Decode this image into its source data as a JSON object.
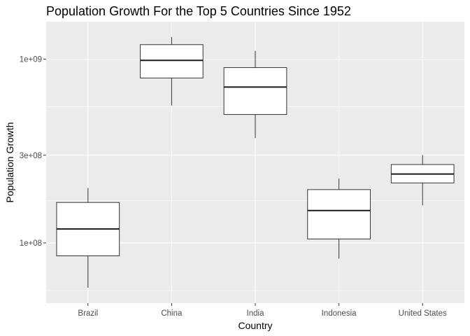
{
  "chart_data": {
    "type": "boxplot",
    "title": "Population Growth For the Top 5 Countries Since 1952",
    "xlabel": "Country",
    "ylabel": "Population Growth",
    "y_scale": "log10",
    "ylim": [
      47000000,
      1600000000
    ],
    "y_ticks": [
      {
        "value": 100000000,
        "label": "1e+08"
      },
      {
        "value": 300000000,
        "label": "3e+08"
      },
      {
        "value": 1000000000,
        "label": "1e+09"
      }
    ],
    "y_minor_ticks": [
      55000000,
      170000000,
      550000000
    ],
    "grid": true,
    "categories": [
      "Brazil",
      "China",
      "India",
      "Indonesia",
      "United States"
    ],
    "boxes": [
      {
        "category": "Brazil",
        "min": 57000000,
        "q1": 85000000,
        "median": 119000000,
        "q3": 166000000,
        "max": 199000000
      },
      {
        "category": "China",
        "min": 560000000,
        "q1": 790000000,
        "median": 985000000,
        "q3": 1200000000,
        "max": 1320000000
      },
      {
        "category": "India",
        "min": 372000000,
        "q1": 500000000,
        "median": 705000000,
        "q3": 900000000,
        "max": 1110000000
      },
      {
        "category": "Indonesia",
        "min": 82000000,
        "q1": 105000000,
        "median": 150000000,
        "q3": 195000000,
        "max": 224000000
      },
      {
        "category": "United States",
        "min": 160000000,
        "q1": 212000000,
        "median": 237000000,
        "q3": 267000000,
        "max": 301000000
      }
    ]
  }
}
